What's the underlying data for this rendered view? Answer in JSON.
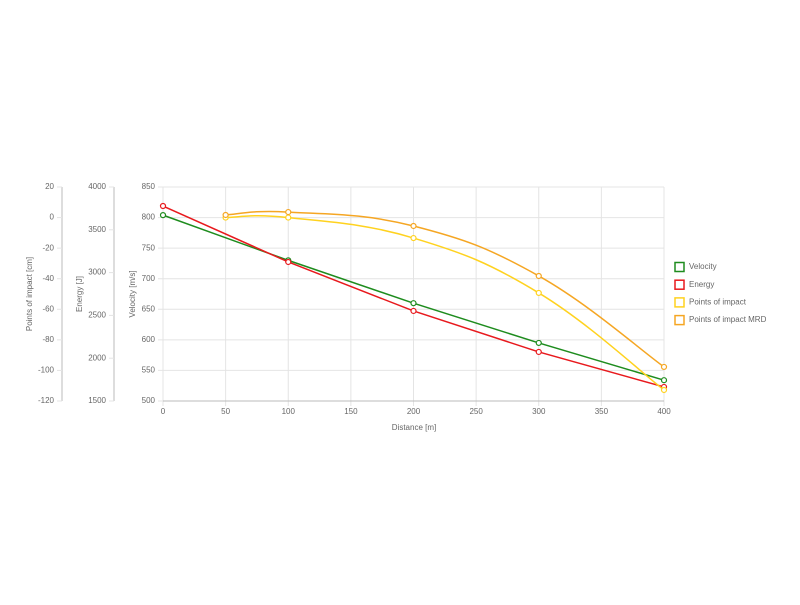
{
  "chart_data": {
    "type": "line",
    "x_label": "Distance [m]",
    "xlim": [
      0,
      400
    ],
    "xticks": [
      0,
      50,
      100,
      150,
      200,
      250,
      300,
      350,
      400
    ],
    "ylim": [
      500,
      850
    ],
    "yticks": [
      850,
      800,
      750,
      700,
      650,
      600,
      550,
      500
    ],
    "y_label": "Velocity [m/s]",
    "y2lim": [
      1500,
      4000
    ],
    "y2ticks": [
      4000,
      3500,
      3000,
      2500,
      2000,
      1500
    ],
    "y2_label": "Energy [J]",
    "y3lim": [
      -120,
      20
    ],
    "y3ticks": [
      20,
      0,
      -20,
      -40,
      -60,
      -80,
      -100,
      -120
    ],
    "y3_label": "Points of impact [cm]",
    "grid": true,
    "legend": "right",
    "series": [
      {
        "name": "Velocity",
        "color": "#1e8c1e",
        "axis": "y",
        "smooth": false,
        "x": [
          0,
          100,
          200,
          300,
          400
        ],
        "values": [
          804,
          730,
          660,
          595,
          534
        ]
      },
      {
        "name": "Energy",
        "color": "#e8191d",
        "axis": "y2",
        "smooth": false,
        "x": [
          0,
          100,
          200,
          300,
          400
        ],
        "values": [
          3778,
          3124,
          2552,
          2073,
          1664
        ]
      },
      {
        "name": "Points of impact",
        "color": "#ffd21f",
        "axis": "y3",
        "smooth": true,
        "x": [
          50,
          100,
          200,
          300,
          400
        ],
        "values": [
          0,
          0,
          -13.4,
          -49.3,
          -112.8
        ]
      },
      {
        "name": "Points of impact MRD",
        "color": "#f5a623",
        "axis": "y3",
        "smooth": true,
        "x": [
          50,
          100,
          200,
          300,
          400
        ],
        "values": [
          1.7,
          3.6,
          -5.5,
          -38.2,
          -97.7
        ]
      }
    ]
  }
}
